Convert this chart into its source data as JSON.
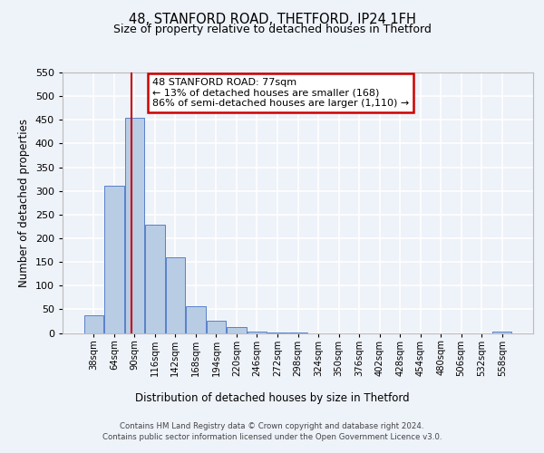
{
  "title": "48, STANFORD ROAD, THETFORD, IP24 1FH",
  "subtitle": "Size of property relative to detached houses in Thetford",
  "xlabel": "Distribution of detached houses by size in Thetford",
  "ylabel": "Number of detached properties",
  "bar_labels": [
    "38sqm",
    "64sqm",
    "90sqm",
    "116sqm",
    "142sqm",
    "168sqm",
    "194sqm",
    "220sqm",
    "246sqm",
    "272sqm",
    "298sqm",
    "324sqm",
    "350sqm",
    "376sqm",
    "402sqm",
    "428sqm",
    "454sqm",
    "480sqm",
    "506sqm",
    "532sqm",
    "558sqm"
  ],
  "bar_values": [
    38,
    310,
    455,
    228,
    160,
    57,
    25,
    12,
    3,
    1,
    1,
    0,
    0,
    0,
    0,
    0,
    0,
    0,
    0,
    0,
    2
  ],
  "bar_color": "#b8cce4",
  "bar_edge_color": "#4472c4",
  "marker_line_color": "#cc0000",
  "annotation_line1": "48 STANFORD ROAD: 77sqm",
  "annotation_line2": "← 13% of detached houses are smaller (168)",
  "annotation_line3": "86% of semi-detached houses are larger (1,110) →",
  "annotation_box_color": "#ffffff",
  "annotation_box_edge": "#cc0000",
  "ylim": [
    0,
    550
  ],
  "yticks": [
    0,
    50,
    100,
    150,
    200,
    250,
    300,
    350,
    400,
    450,
    500,
    550
  ],
  "footer_line1": "Contains HM Land Registry data © Crown copyright and database right 2024.",
  "footer_line2": "Contains public sector information licensed under the Open Government Licence v3.0.",
  "bg_color": "#eef2f9",
  "plot_bg_color": "#eef2f9",
  "grid_color": "#ffffff"
}
